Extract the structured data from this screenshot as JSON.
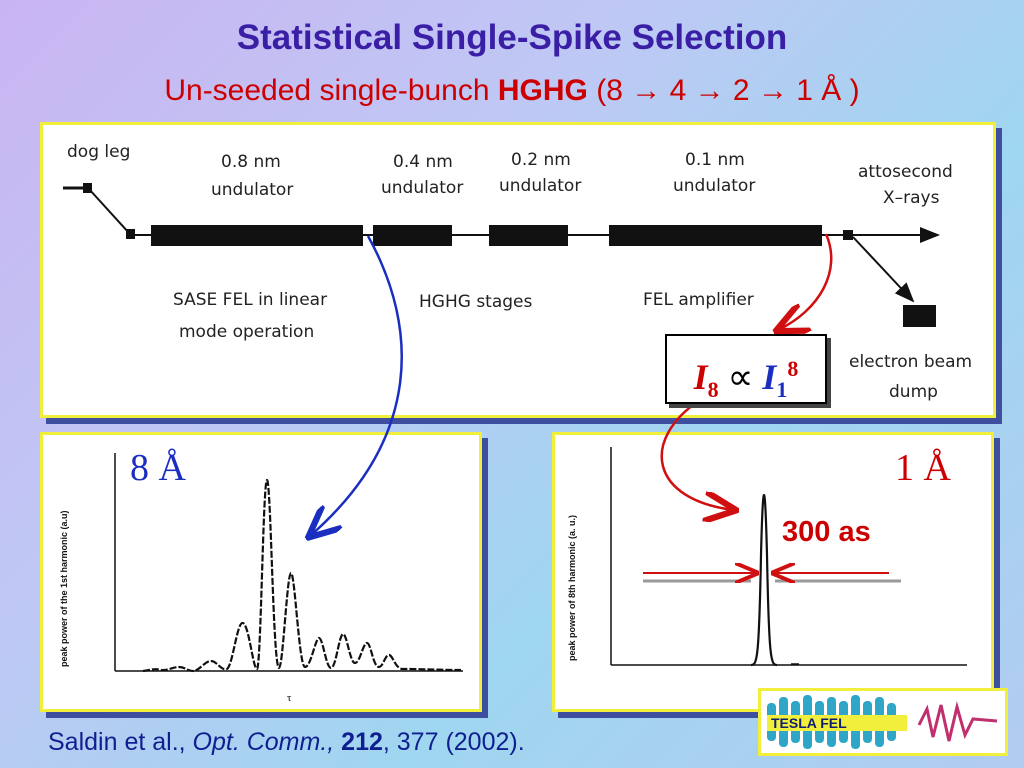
{
  "title": "Statistical Single-Spike Selection",
  "subtitle": {
    "prefix": "Un-seeded single-bunch ",
    "bold": "HGHG",
    "suffix": " (8 → 4 → 2 → 1 Å )"
  },
  "diagram": {
    "dog_leg": "dog leg",
    "und_08_line1": "0.8 nm",
    "und_08_line2": "undulator",
    "und_04_line1": "0.4 nm",
    "und_04_line2": "undulator",
    "und_02_line1": "0.2 nm",
    "und_02_line2": "undulator",
    "und_01_line1": "0.1 nm",
    "und_01_line2": "undulator",
    "attosecond_line1": "attosecond",
    "attosecond_line2": "X–rays",
    "sase_line1": "SASE FEL in linear",
    "sase_line2": "mode operation",
    "hghg_stages": "HGHG stages",
    "fel_amplifier": "FEL amplifier",
    "dump_line1": "electron beam",
    "dump_line2": "dump"
  },
  "formula": {
    "lhs_symbol": "I",
    "lhs_subscript": "8",
    "relation": "∝",
    "rhs_symbol": "I",
    "rhs_subscript": "1",
    "rhs_exponent": "8"
  },
  "plot_left": {
    "label": "8 Å",
    "ylabel": "peak power of the 1st harmonic (a.u)",
    "xlabel": "τ"
  },
  "plot_right": {
    "label": "1 Å",
    "ylabel": "peak power of 8th harmonic (a. u.)",
    "pulse_width": "300 as"
  },
  "citation": {
    "authors": "Saldin et al., ",
    "journal": "Opt. Comm.,",
    "volume": "212",
    "rest": ", 377 (2002)."
  },
  "logo": {
    "text": "TESLA  FEL"
  },
  "colors": {
    "title": "#3a1fa6",
    "subtitle": "#cc0000",
    "blue_arrow": "#1a2fc0",
    "red_arrow": "#d01010",
    "panel_border": "#f1ee3c"
  }
}
